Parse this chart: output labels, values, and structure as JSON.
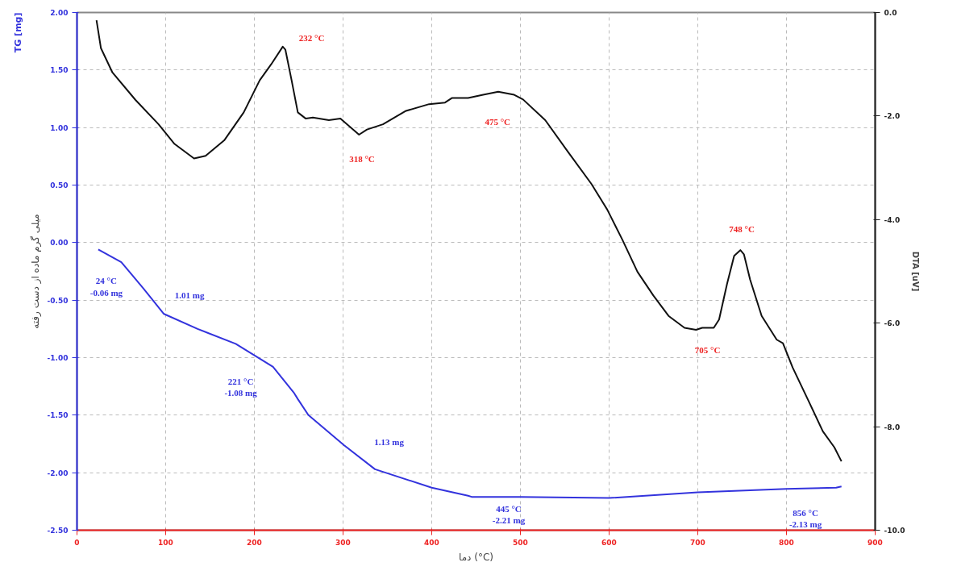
{
  "chart_data": {
    "type": "line",
    "xlabel": "دما (°C)",
    "ylabel": "میلی گرم ماده از دست رفته",
    "y2label": "DTA [uV]",
    "xlim": [
      0,
      900
    ],
    "xticks": [
      0,
      100,
      200,
      300,
      400,
      500,
      600,
      700,
      800,
      900
    ],
    "ylim": [
      -2.5,
      2
    ],
    "yticks": [
      {
        "value": -2.5,
        "label": "-2.50"
      },
      {
        "value": -2,
        "label": "-2.00"
      },
      {
        "value": -1.5,
        "label": "-1.50"
      },
      {
        "value": -1,
        "label": "-1.00"
      },
      {
        "value": -0.5,
        "label": "-0.50"
      },
      {
        "value": 0,
        "label": "0.00"
      },
      {
        "value": 0.5,
        "label": "0.50"
      },
      {
        "value": 1,
        "label": "1.00"
      },
      {
        "value": 1.5,
        "label": "1.50"
      },
      {
        "value": 2,
        "label": "2.00"
      }
    ],
    "y2lim": [
      -10,
      0
    ],
    "y2ticks": [
      {
        "value": -10,
        "label": "-10.0"
      },
      {
        "value": -8,
        "label": "-8.0"
      },
      {
        "value": -6,
        "label": "-6.0"
      },
      {
        "value": -4,
        "label": "-4.0"
      },
      {
        "value": -2,
        "label": "-2.0"
      },
      {
        "value": 0,
        "label": "0.0"
      }
    ],
    "grid": true,
    "line_style": "solid",
    "series": [
      {
        "color": "#3333dd",
        "x": [
          24,
          50,
          75,
          98,
          136,
          179,
          221,
          245,
          249,
          261,
          301,
          336,
          400,
          441,
          445,
          500,
          600,
          700,
          800,
          856,
          862
        ],
        "values": [
          -0.06,
          -0.17,
          -0.4,
          -0.62,
          -0.75,
          -0.88,
          -1.08,
          -1.31,
          -1.36,
          -1.5,
          -1.76,
          -1.97,
          -2.13,
          -2.2,
          -2.21,
          -2.21,
          -2.22,
          -2.17,
          -2.14,
          -2.13,
          -2.12
        ]
      },
      {
        "color": "#111111",
        "axis": "y2",
        "x": [
          22,
          27,
          40,
          66,
          92,
          110,
          132,
          145,
          166,
          188,
          206,
          219,
          232,
          235,
          242,
          249,
          258,
          266,
          284,
          297,
          318,
          327,
          345,
          371,
          397,
          415,
          423,
          441,
          458,
          475,
          493,
          503,
          528,
          554,
          580,
          598,
          615,
          632,
          650,
          667,
          685,
          698,
          705,
          718,
          724,
          733,
          741,
          748,
          752,
          759,
          772,
          789,
          796,
          807,
          824,
          841,
          854,
          862
        ],
        "values": [
          -0.15,
          -0.69,
          -1.16,
          -1.69,
          -2.16,
          -2.54,
          -2.82,
          -2.77,
          -2.47,
          -1.93,
          -1.31,
          -1.0,
          -0.66,
          -0.72,
          -1.31,
          -1.93,
          -2.05,
          -2.03,
          -2.08,
          -2.05,
          -2.36,
          -2.26,
          -2.16,
          -1.9,
          -1.77,
          -1.74,
          -1.65,
          -1.65,
          -1.59,
          -1.53,
          -1.59,
          -1.68,
          -2.08,
          -2.7,
          -3.31,
          -3.81,
          -4.39,
          -5.01,
          -5.47,
          -5.86,
          -6.09,
          -6.13,
          -6.09,
          -6.09,
          -5.93,
          -5.24,
          -4.7,
          -4.59,
          -4.67,
          -5.16,
          -5.86,
          -6.32,
          -6.39,
          -6.86,
          -7.47,
          -8.09,
          -8.4,
          -8.67
        ]
      }
    ],
    "annotations": [
      "TG [mg]",
      "232 °C",
      "318 °C",
      "475 °C",
      "705 °C",
      "748 °C",
      "1.01 mg",
      "1.13 mg",
      {
        "text": "24 °C\n-0.06 mg",
        "x": 24,
        "y": -0.06
      },
      {
        "text": "221 °C\n-1.08 mg",
        "x": 221,
        "y": -1.08
      },
      {
        "text": "445 °C\n-2.21 mg",
        "x": 445,
        "y": -2.21
      },
      {
        "text": "856 °C\n-2.13 mg",
        "x": 856,
        "y": -2.13
      }
    ]
  }
}
